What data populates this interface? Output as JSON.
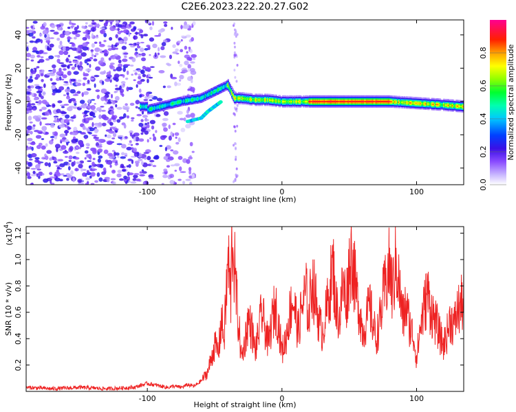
{
  "title": "C2E6.2023.222.20.27.G02",
  "colorbar": {
    "label": "Normalized spectral amplitude",
    "ticks": [
      "0.0",
      "0.2",
      "0.4",
      "0.6",
      "0.8"
    ],
    "tick_values": [
      0.0,
      0.2,
      0.4,
      0.6,
      0.8
    ],
    "range": [
      0,
      1
    ]
  },
  "colors": {
    "snr_line": "#ee2222"
  },
  "chart_data": [
    {
      "type": "heatmap",
      "xlabel": "Height of straight line (km)",
      "ylabel": "Frequency (Hz)",
      "xlim": [
        -190,
        135
      ],
      "ylim": [
        -50,
        49
      ],
      "xticks": [
        -100,
        0,
        100
      ],
      "xtick_labels": [
        "-100",
        "0",
        "100"
      ],
      "yticks": [
        -40,
        -20,
        0,
        20,
        40
      ],
      "ytick_labels": [
        "-40",
        "-20",
        "0",
        "20",
        "40"
      ],
      "band": {
        "description_points": [
          [
            -100,
            -5
          ],
          [
            -90,
            -3
          ],
          [
            -75,
            0
          ],
          [
            -60,
            2
          ],
          [
            -45,
            8
          ],
          [
            -40,
            10
          ],
          [
            -35,
            2
          ],
          [
            -30,
            2
          ],
          [
            -20,
            1
          ],
          [
            -10,
            1
          ],
          [
            0,
            0
          ],
          [
            10,
            0
          ],
          [
            50,
            0
          ],
          [
            80,
            0
          ],
          [
            100,
            -1
          ],
          [
            120,
            -2
          ],
          [
            135,
            -3
          ]
        ],
        "secondary_points": [
          [
            -70,
            -12
          ],
          [
            -60,
            -10
          ],
          [
            -55,
            -6
          ],
          [
            -50,
            -3
          ],
          [
            -45,
            0
          ]
        ]
      }
    },
    {
      "type": "line",
      "xlabel": "Height of straight line (km)",
      "ylabel": "SNR (10 * v/v)",
      "y_multiplier_label": "(x10",
      "y_multiplier_exp": "4",
      "xlim": [
        -190,
        135
      ],
      "ylim": [
        0,
        1.25
      ],
      "xticks": [
        -100,
        0,
        100
      ],
      "xtick_labels": [
        "-100",
        "0",
        "100"
      ],
      "yticks": [
        0.2,
        0.4,
        0.6,
        0.8,
        1.0,
        1.2
      ],
      "ytick_labels": [
        "0.2",
        "0.4",
        "0.6",
        "0.8",
        "1.0",
        "1.2"
      ],
      "series": [
        {
          "x": [
            -190,
            -170,
            -150,
            -130,
            -110,
            -100,
            -95,
            -85,
            -80,
            -75,
            -70,
            -65,
            -60,
            -55,
            -50,
            -47,
            -45,
            -43,
            -40,
            -38,
            -37,
            -35,
            -33,
            -30,
            -28,
            -25,
            -22,
            -20,
            -18,
            -15,
            -12,
            -10,
            -8,
            -5,
            -3,
            0,
            3,
            5,
            8,
            10,
            12,
            15,
            18,
            20,
            22,
            25,
            28,
            30,
            33,
            35,
            38,
            40,
            43,
            45,
            48,
            50,
            52,
            55,
            58,
            60,
            63,
            65,
            68,
            70,
            73,
            75,
            78,
            80,
            82,
            85,
            88,
            90,
            92,
            95,
            98,
            100,
            103,
            105,
            108,
            110,
            113,
            115,
            118,
            120,
            123,
            125,
            128,
            130,
            133,
            135
          ],
          "y": [
            0.03,
            0.02,
            0.03,
            0.02,
            0.03,
            0.06,
            0.05,
            0.03,
            0.04,
            0.03,
            0.05,
            0.04,
            0.08,
            0.15,
            0.35,
            0.3,
            0.55,
            0.4,
            1.0,
            0.7,
            1.2,
            0.9,
            0.6,
            0.25,
            0.35,
            0.55,
            0.45,
            0.3,
            0.4,
            0.6,
            0.45,
            0.35,
            0.5,
            0.65,
            0.55,
            0.3,
            0.4,
            0.55,
            0.7,
            0.6,
            0.45,
            0.65,
            0.75,
            0.55,
            0.85,
            0.7,
            0.5,
            0.45,
            0.6,
            0.75,
            0.95,
            0.65,
            0.55,
            0.8,
            0.7,
            0.95,
            1.05,
            0.75,
            0.6,
            0.45,
            0.55,
            0.65,
            0.5,
            0.4,
            0.55,
            0.7,
            0.85,
            0.95,
            0.75,
            1.0,
            0.7,
            0.55,
            0.65,
            0.5,
            0.4,
            0.25,
            0.5,
            0.6,
            0.75,
            0.65,
            0.55,
            0.5,
            0.4,
            0.35,
            0.45,
            0.55,
            0.5,
            0.6,
            0.65,
            0.7
          ]
        }
      ]
    }
  ]
}
